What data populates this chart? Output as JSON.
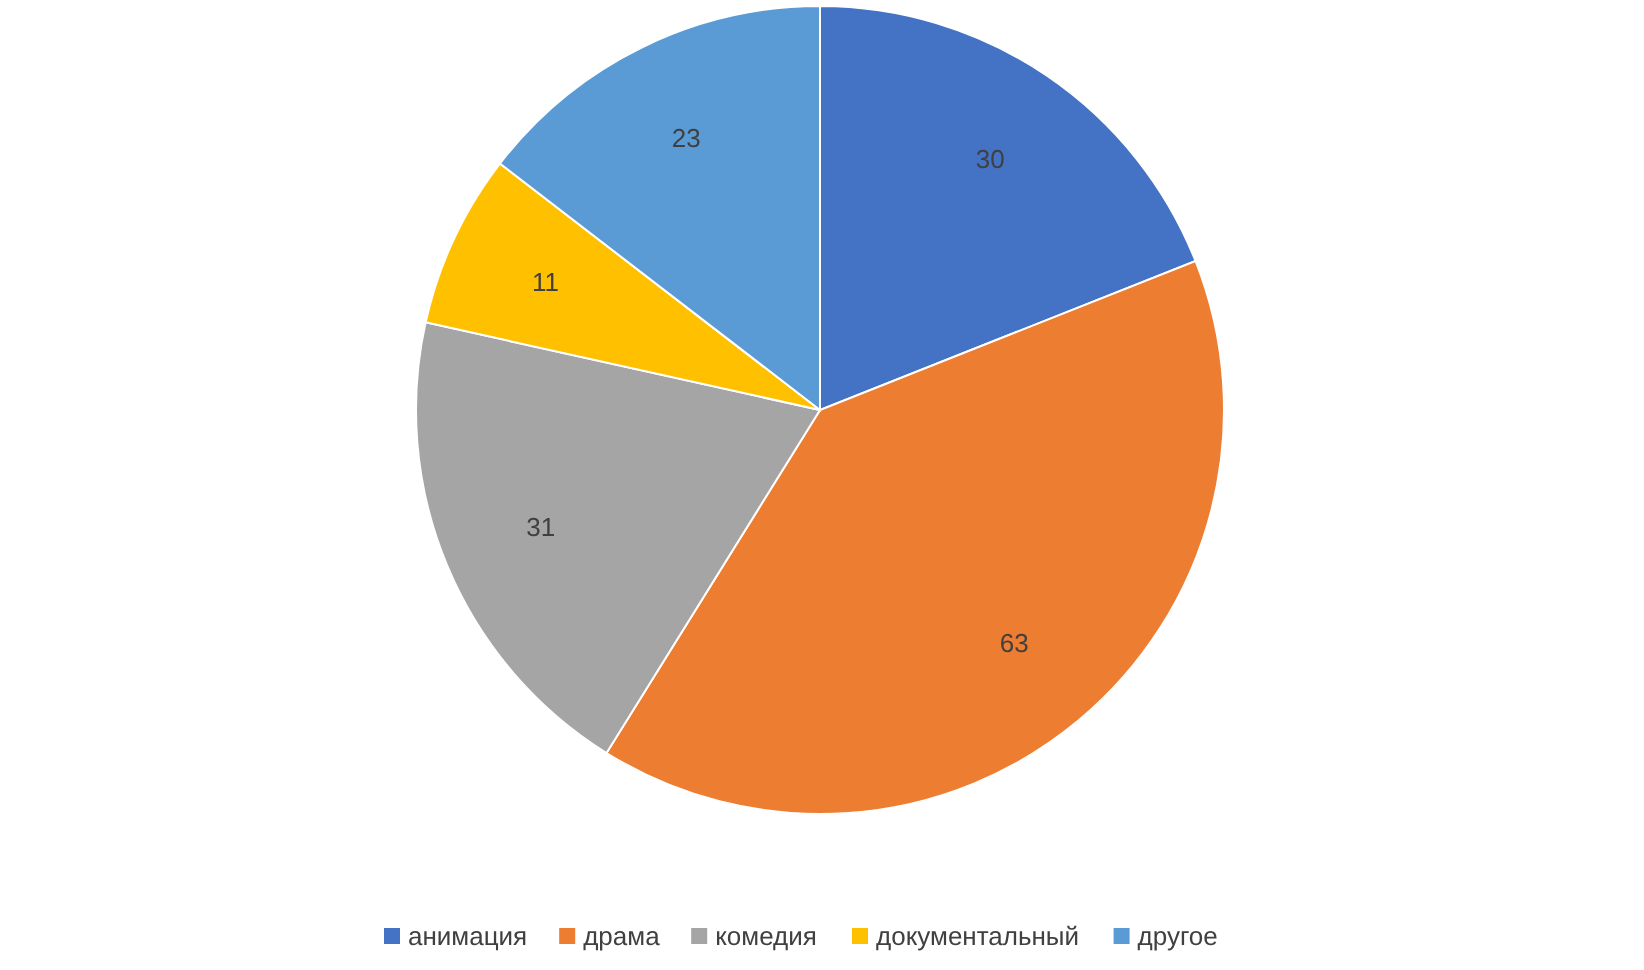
{
  "chart_data": {
    "type": "pie",
    "categories": [
      "анимация",
      "драма",
      "комедия",
      "документальный",
      "другое"
    ],
    "values": [
      30,
      63,
      31,
      11,
      23
    ],
    "colors": [
      "#4472c4",
      "#ed7d31",
      "#a5a5a5",
      "#ffc000",
      "#5b9bd5"
    ],
    "data_labels": true,
    "legend": "bottom"
  }
}
